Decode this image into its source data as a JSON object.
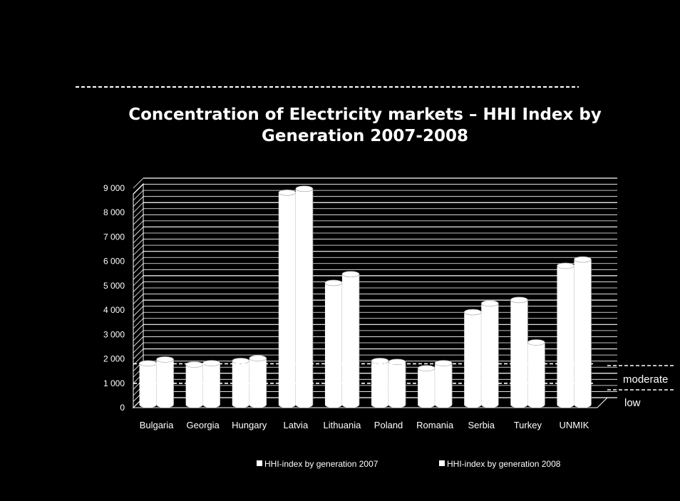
{
  "chart_data": {
    "type": "bar",
    "title_lines": [
      "Concentration of Electricity markets – HHI Index by",
      "Generation  2007-2008"
    ],
    "categories": [
      "Bulgaria",
      "Georgia",
      "Hungary",
      "Latvia",
      "Lithuania",
      "Poland",
      "Romania",
      "Serbia",
      "Turkey",
      "UNMIK"
    ],
    "series": [
      {
        "name": "HHI-index by generation 2007",
        "values": [
          1700,
          1650,
          1800,
          8700,
          5000,
          1800,
          1500,
          3800,
          4300,
          5700
        ]
      },
      {
        "name": "HHI-index by generation 2008",
        "values": [
          1800,
          1650,
          1850,
          8800,
          5300,
          1700,
          1650,
          4100,
          2500,
          5900
        ]
      }
    ],
    "y_ticks": [
      "0",
      "1 000",
      "2 000",
      "3 000",
      "4 000",
      "5 000",
      "6 000",
      "7 000",
      "8 000",
      "9 000"
    ],
    "ylim": [
      0,
      9000
    ],
    "y_tick_step": 1000,
    "grid": true,
    "legend_position": "bottom",
    "zones": [
      {
        "label": "moderate",
        "threshold": 1800
      },
      {
        "label": "low",
        "threshold": 1000
      }
    ],
    "colors": {
      "background": "#000000",
      "bars": "#ffffff",
      "text": "#ffffff",
      "grid": "#ffffff"
    }
  }
}
